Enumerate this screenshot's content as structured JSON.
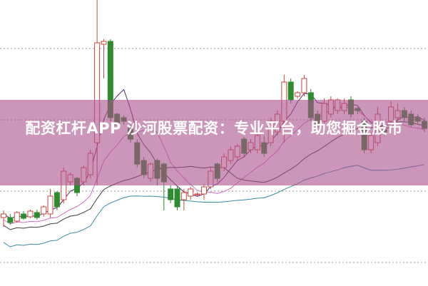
{
  "title": "配资杠杆APP 沙河股票配资：专业平台，助您掘金股市",
  "colors": {
    "up": "#d0453f",
    "down": "#2e8b2e",
    "banner": "#b0609a",
    "ma": [
      "#5a2a6a",
      "#d070c0",
      "#3a3a3a",
      "#3a8aa0"
    ]
  },
  "chart_data": {
    "type": "candlestick",
    "grid": true,
    "candles": [
      [
        95,
        100,
        105,
        82
      ],
      [
        95,
        88,
        100,
        85
      ],
      [
        90,
        102,
        104,
        88
      ],
      [
        100,
        94,
        104,
        92
      ],
      [
        96,
        104,
        106,
        94
      ],
      [
        102,
        95,
        106,
        92
      ],
      [
        100,
        110,
        112,
        96
      ],
      [
        100,
        125,
        135,
        95
      ],
      [
        130,
        110,
        132,
        105
      ],
      [
        120,
        160,
        165,
        115
      ],
      [
        145,
        155,
        158,
        140
      ],
      [
        150,
        130,
        152,
        125
      ],
      [
        145,
        165,
        168,
        140
      ],
      [
        155,
        185,
        190,
        150
      ],
      [
        200,
        340,
        400,
        140
      ],
      [
        338,
        342,
        345,
        290
      ],
      [
        342,
        235,
        345,
        230
      ],
      [
        240,
        225,
        242,
        220
      ],
      [
        235,
        230,
        238,
        225
      ],
      [
        220,
        205,
        225,
        200
      ],
      [
        200,
        170,
        205,
        165
      ],
      [
        175,
        155,
        180,
        150
      ],
      [
        150,
        170,
        172,
        145
      ],
      [
        175,
        150,
        178,
        140
      ],
      [
        170,
        145,
        172,
        105
      ],
      [
        135,
        120,
        140,
        115
      ],
      [
        135,
        110,
        138,
        105
      ],
      [
        120,
        130,
        135,
        105
      ],
      [
        125,
        135,
        138,
        120
      ],
      [
        128,
        128,
        130,
        125
      ],
      [
        128,
        138,
        142,
        120
      ],
      [
        138,
        160,
        165,
        135
      ],
      [
        170,
        150,
        172,
        145
      ],
      [
        165,
        180,
        185,
        160
      ],
      [
        175,
        190,
        195,
        170
      ],
      [
        180,
        195,
        198,
        175
      ],
      [
        205,
        185,
        208,
        180
      ],
      [
        190,
        200,
        205,
        185
      ],
      [
        190,
        210,
        215,
        185
      ],
      [
        200,
        185,
        210,
        180
      ],
      [
        200,
        230,
        235,
        195
      ],
      [
        215,
        240,
        245,
        210
      ],
      [
        230,
        285,
        295,
        200
      ],
      [
        285,
        260,
        290,
        255
      ],
      [
        265,
        270,
        272,
        262
      ],
      [
        270,
        290,
        295,
        265
      ],
      [
        270,
        235,
        275,
        230
      ],
      [
        240,
        225,
        245,
        220
      ],
      [
        230,
        255,
        262,
        225
      ],
      [
        240,
        260,
        265,
        235
      ],
      [
        245,
        260,
        262,
        240
      ],
      [
        245,
        255,
        262,
        240
      ],
      [
        260,
        240,
        265,
        235
      ],
      [
        248,
        245,
        250,
        240
      ],
      [
        230,
        190,
        235,
        185
      ],
      [
        190,
        210,
        215,
        185
      ],
      [
        200,
        240,
        250,
        195
      ],
      [
        218,
        215,
        225,
        210
      ],
      [
        230,
        250,
        258,
        225
      ],
      [
        235,
        245,
        255,
        230
      ],
      [
        245,
        235,
        250,
        230
      ],
      [
        240,
        225,
        245,
        222
      ],
      [
        235,
        230,
        240,
        225
      ],
      [
        230,
        220,
        235,
        215
      ]
    ]
  }
}
